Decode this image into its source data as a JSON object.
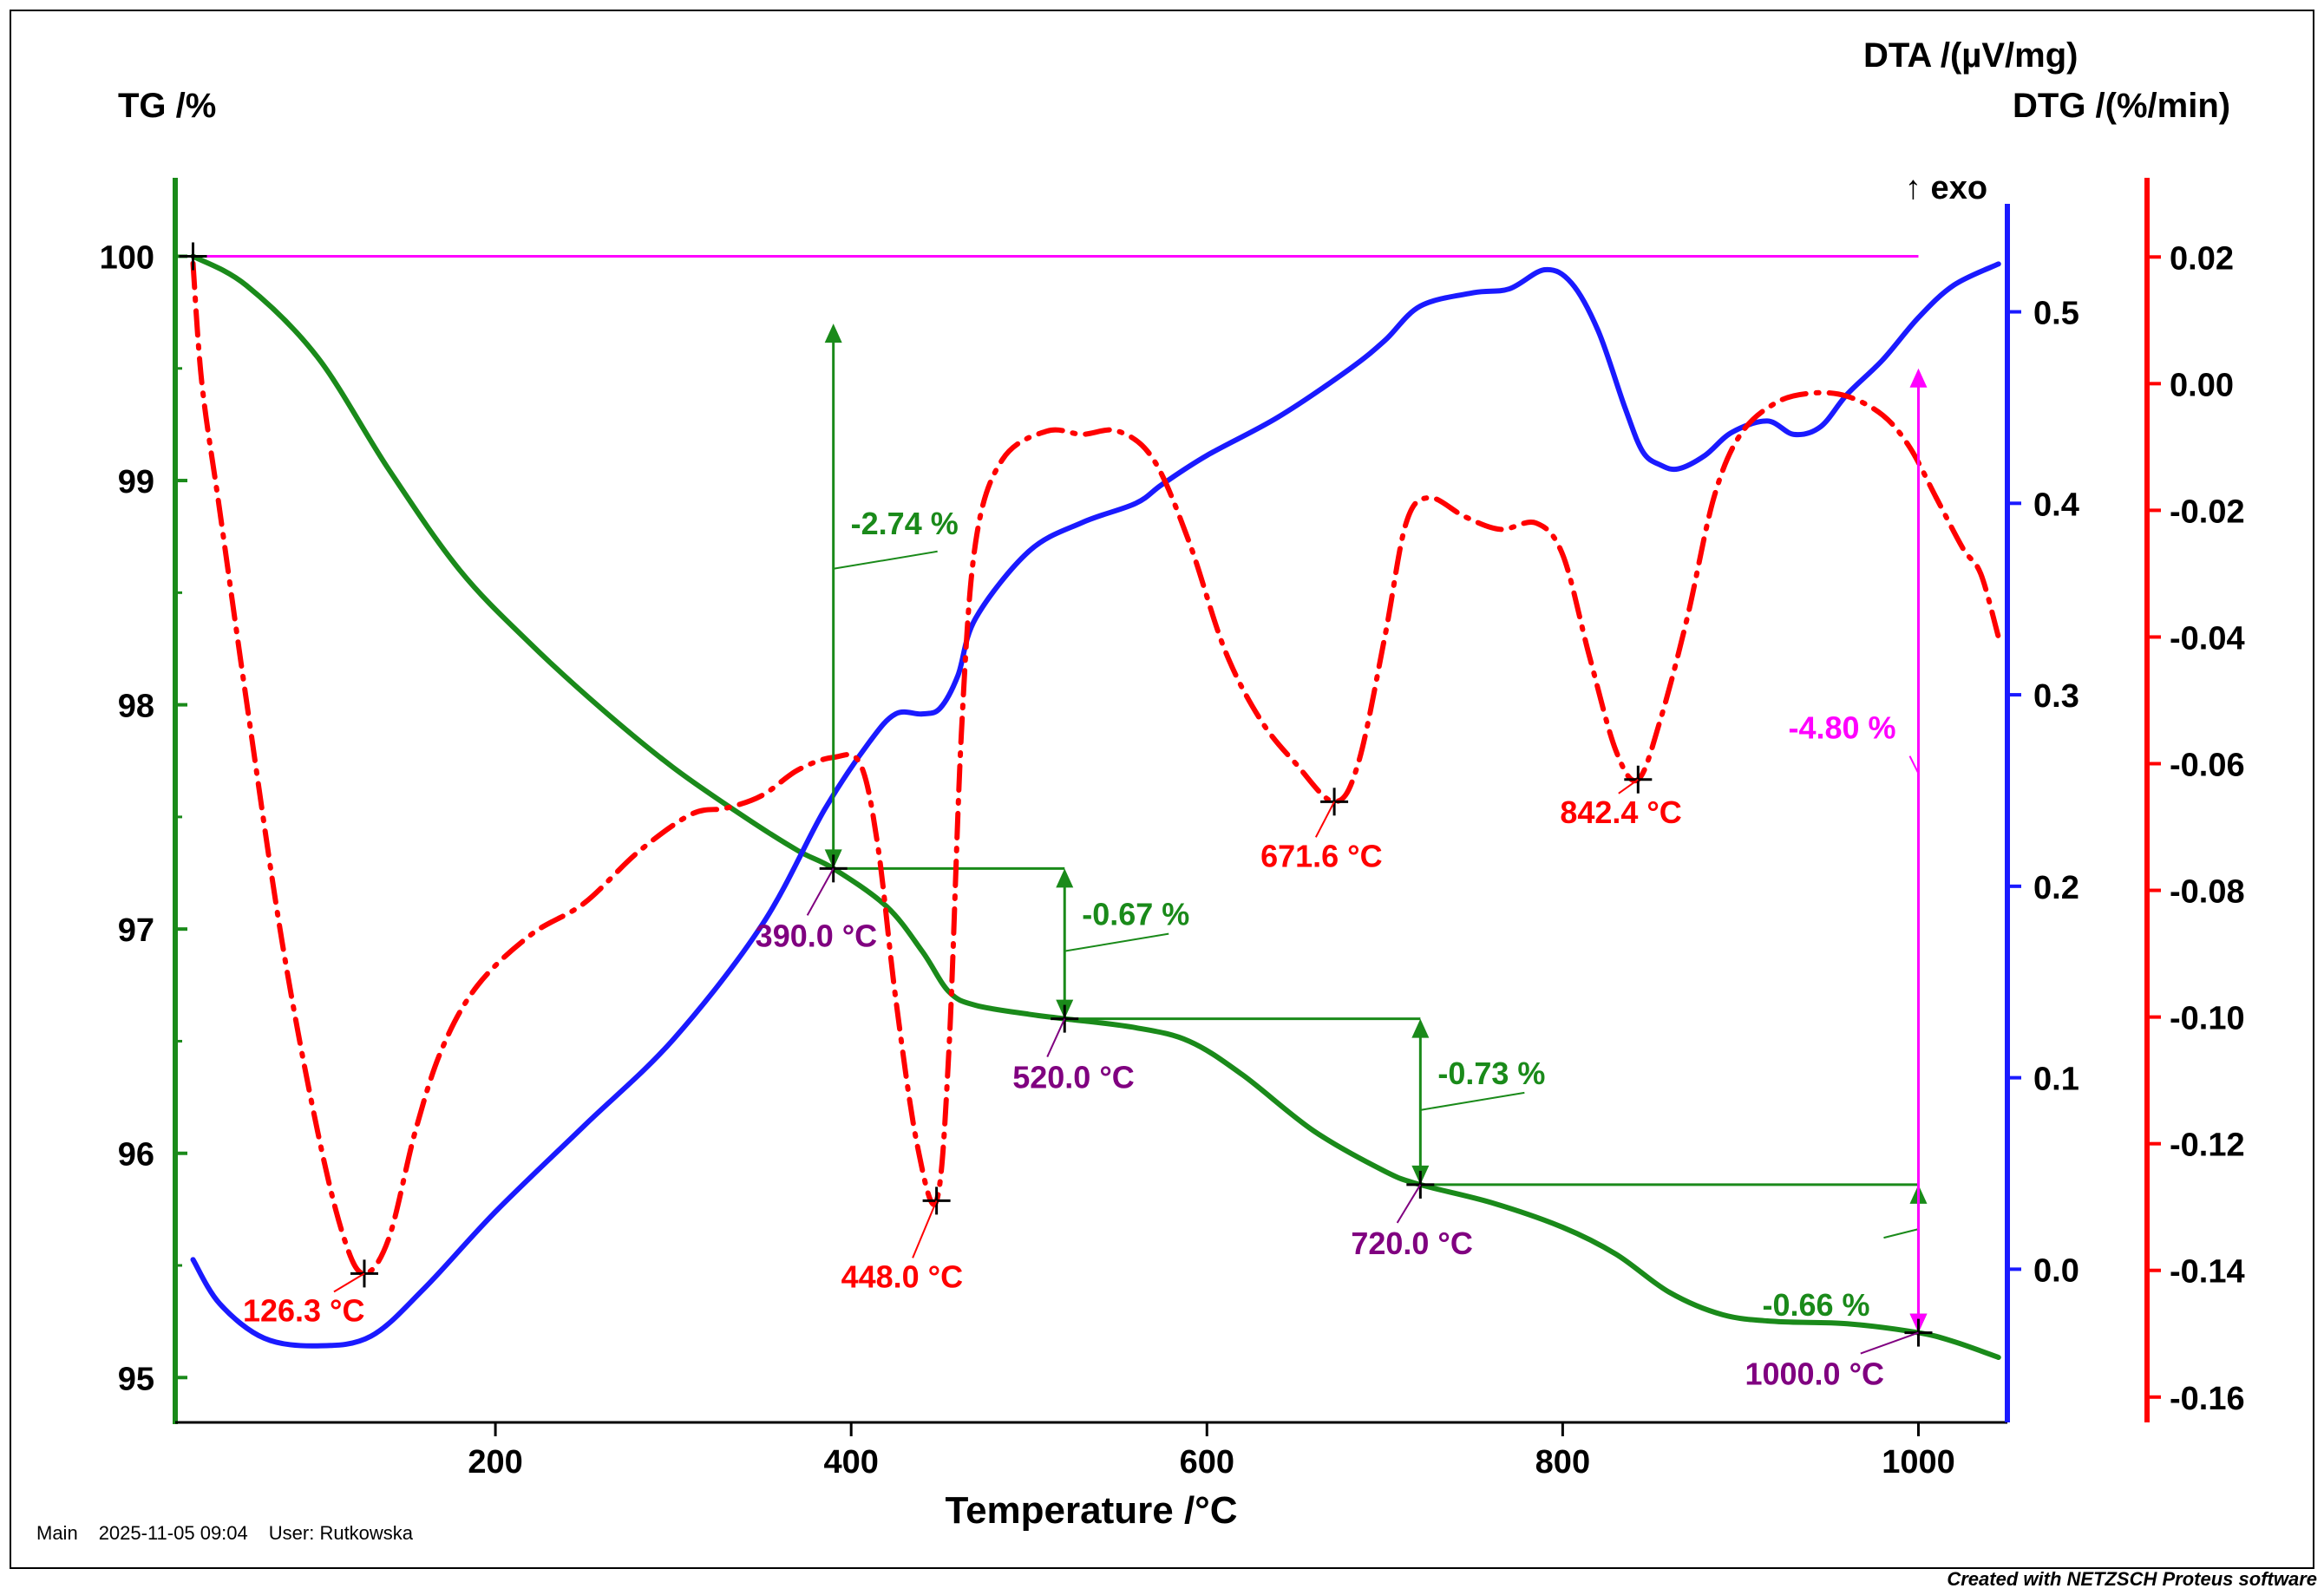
{
  "footer": {
    "label": "Main",
    "timestamp": "2025-11-05 09:04",
    "user": "User: Rutkowska"
  },
  "credit": "Created with NETZSCH Proteus software",
  "chart_data": {
    "type": "line",
    "xlabel": "Temperature /°C",
    "xlim": [
      20,
      1050
    ],
    "xticks": [
      200,
      400,
      600,
      800,
      1000
    ],
    "axes": {
      "tg": {
        "title": "TG /%",
        "ylim": [
          94.8,
          100.35
        ],
        "ticks": [
          95,
          96,
          97,
          98,
          99,
          100
        ],
        "color": "#000000",
        "axis_color": "#1a8a1a"
      },
      "dta": {
        "title": "DTA /(µV/mg)",
        "exo": "↑ exo",
        "ylim": [
          -0.08,
          0.57
        ],
        "ticks": [
          0.0,
          0.1,
          0.2,
          0.3,
          0.4,
          0.5
        ],
        "color": "#000000",
        "axis_color": "#1a1aff"
      },
      "dtg": {
        "title": "DTG /(%/min)",
        "ylim": [
          -0.164,
          0.0325
        ],
        "ticks": [
          0.02,
          0.0,
          -0.02,
          -0.04,
          -0.06,
          -0.08,
          -0.1,
          -0.12,
          -0.14,
          -0.16
        ],
        "tick_labels": [
          "0.02",
          "0.00",
          "-0.02",
          "-0.04",
          "-0.06",
          "-0.08",
          "-0.10",
          "-0.12",
          "-0.14",
          "-0.16"
        ],
        "color": "#000000",
        "axis_color": "#ff0000"
      }
    },
    "series": [
      {
        "name": "TG",
        "axis": "tg",
        "color": "#1a8a1a",
        "style": "solid",
        "points": [
          [
            30,
            100.0
          ],
          [
            60,
            99.87
          ],
          [
            100,
            99.55
          ],
          [
            140,
            99.05
          ],
          [
            180,
            98.6
          ],
          [
            220,
            98.27
          ],
          [
            260,
            97.98
          ],
          [
            300,
            97.72
          ],
          [
            340,
            97.5
          ],
          [
            370,
            97.35
          ],
          [
            390,
            97.27
          ],
          [
            420,
            97.1
          ],
          [
            440,
            96.9
          ],
          [
            455,
            96.72
          ],
          [
            470,
            96.66
          ],
          [
            500,
            96.62
          ],
          [
            520,
            96.6
          ],
          [
            560,
            96.56
          ],
          [
            590,
            96.5
          ],
          [
            620,
            96.35
          ],
          [
            660,
            96.1
          ],
          [
            700,
            95.92
          ],
          [
            720,
            95.86
          ],
          [
            760,
            95.78
          ],
          [
            800,
            95.67
          ],
          [
            830,
            95.55
          ],
          [
            860,
            95.38
          ],
          [
            890,
            95.28
          ],
          [
            920,
            95.25
          ],
          [
            960,
            95.24
          ],
          [
            1000,
            95.2
          ],
          [
            1020,
            95.16
          ],
          [
            1045,
            95.09
          ]
        ]
      },
      {
        "name": "DTA",
        "axis": "dta",
        "color": "#1a1aff",
        "style": "solid",
        "points": [
          [
            30,
            0.005
          ],
          [
            45,
            -0.018
          ],
          [
            70,
            -0.036
          ],
          [
            100,
            -0.04
          ],
          [
            130,
            -0.035
          ],
          [
            160,
            -0.01
          ],
          [
            200,
            0.03
          ],
          [
            250,
            0.075
          ],
          [
            300,
            0.12
          ],
          [
            350,
            0.18
          ],
          [
            385,
            0.24
          ],
          [
            410,
            0.275
          ],
          [
            425,
            0.29
          ],
          [
            440,
            0.29
          ],
          [
            450,
            0.293
          ],
          [
            460,
            0.31
          ],
          [
            470,
            0.34
          ],
          [
            500,
            0.375
          ],
          [
            530,
            0.39
          ],
          [
            560,
            0.4
          ],
          [
            575,
            0.41
          ],
          [
            600,
            0.425
          ],
          [
            640,
            0.445
          ],
          [
            680,
            0.47
          ],
          [
            700,
            0.485
          ],
          [
            720,
            0.503
          ],
          [
            750,
            0.51
          ],
          [
            770,
            0.512
          ],
          [
            790,
            0.522
          ],
          [
            805,
            0.515
          ],
          [
            820,
            0.49
          ],
          [
            835,
            0.45
          ],
          [
            845,
            0.427
          ],
          [
            855,
            0.42
          ],
          [
            865,
            0.418
          ],
          [
            880,
            0.425
          ],
          [
            895,
            0.437
          ],
          [
            915,
            0.443
          ],
          [
            930,
            0.436
          ],
          [
            945,
            0.44
          ],
          [
            960,
            0.457
          ],
          [
            980,
            0.475
          ],
          [
            1000,
            0.497
          ],
          [
            1020,
            0.514
          ],
          [
            1045,
            0.525
          ]
        ]
      },
      {
        "name": "DTG",
        "axis": "dtg",
        "color": "#ff0000",
        "style": "dashdot",
        "points": [
          [
            30,
            0.019
          ],
          [
            35,
            0.0
          ],
          [
            45,
            -0.02
          ],
          [
            60,
            -0.05
          ],
          [
            80,
            -0.088
          ],
          [
            100,
            -0.118
          ],
          [
            115,
            -0.135
          ],
          [
            126.3,
            -0.1405
          ],
          [
            140,
            -0.135
          ],
          [
            155,
            -0.118
          ],
          [
            170,
            -0.105
          ],
          [
            190,
            -0.095
          ],
          [
            220,
            -0.087
          ],
          [
            250,
            -0.082
          ],
          [
            280,
            -0.074
          ],
          [
            310,
            -0.068
          ],
          [
            330,
            -0.067
          ],
          [
            350,
            -0.065
          ],
          [
            370,
            -0.061
          ],
          [
            390,
            -0.059
          ],
          [
            405,
            -0.06
          ],
          [
            415,
            -0.073
          ],
          [
            425,
            -0.097
          ],
          [
            437,
            -0.12
          ],
          [
            448,
            -0.129
          ],
          [
            455,
            -0.105
          ],
          [
            462,
            -0.055
          ],
          [
            470,
            -0.025
          ],
          [
            485,
            -0.012
          ],
          [
            510,
            -0.0075
          ],
          [
            530,
            -0.008
          ],
          [
            550,
            -0.0075
          ],
          [
            570,
            -0.012
          ],
          [
            590,
            -0.025
          ],
          [
            610,
            -0.042
          ],
          [
            630,
            -0.053
          ],
          [
            650,
            -0.06
          ],
          [
            671.6,
            -0.066
          ],
          [
            685,
            -0.06
          ],
          [
            700,
            -0.04
          ],
          [
            712,
            -0.022
          ],
          [
            725,
            -0.018
          ],
          [
            745,
            -0.021
          ],
          [
            765,
            -0.023
          ],
          [
            785,
            -0.022
          ],
          [
            800,
            -0.027
          ],
          [
            815,
            -0.043
          ],
          [
            830,
            -0.058
          ],
          [
            842.4,
            -0.0625
          ],
          [
            855,
            -0.053
          ],
          [
            870,
            -0.037
          ],
          [
            885,
            -0.018
          ],
          [
            900,
            -0.008
          ],
          [
            920,
            -0.003
          ],
          [
            940,
            -0.0015
          ],
          [
            960,
            -0.002
          ],
          [
            980,
            -0.005
          ],
          [
            995,
            -0.01
          ],
          [
            1010,
            -0.018
          ],
          [
            1025,
            -0.026
          ],
          [
            1035,
            -0.03
          ],
          [
            1045,
            -0.04
          ]
        ]
      }
    ],
    "peak_markers": [
      {
        "series": "DTG",
        "x": 126.3,
        "label": "126.3 °C",
        "color": "#ff0000"
      },
      {
        "series": "DTG",
        "x": 448.0,
        "label": "448.0 °C",
        "color": "#ff0000"
      },
      {
        "series": "DTG",
        "x": 671.6,
        "label": "671.6 °C",
        "color": "#ff0000"
      },
      {
        "series": "DTG",
        "x": 842.4,
        "label": "842.4 °C",
        "color": "#ff0000"
      }
    ],
    "tg_markers": [
      {
        "x": 390.0,
        "y": 97.27,
        "label": "390.0 °C",
        "color": "#800080"
      },
      {
        "x": 520.0,
        "y": 96.6,
        "label": "520.0 °C",
        "color": "#800080"
      },
      {
        "x": 720.0,
        "y": 95.86,
        "label": "720.0 °C",
        "color": "#800080"
      },
      {
        "x": 1000.0,
        "y": 95.2,
        "label": "1000.0 °C",
        "color": "#800080"
      }
    ],
    "mass_changes": [
      {
        "label": "-2.74 %",
        "x": 390,
        "from": 100.0,
        "to": 97.27,
        "color": "#1a8a1a"
      },
      {
        "label": "-0.67 %",
        "x": 520,
        "from": 97.27,
        "to": 96.6,
        "color": "#1a8a1a"
      },
      {
        "label": "-0.73 %",
        "x": 720,
        "from": 96.6,
        "to": 95.86,
        "color": "#1a8a1a"
      },
      {
        "label": "-0.66 %",
        "x": 1000,
        "from": 95.86,
        "to": 95.2,
        "color": "#1a8a1a"
      },
      {
        "label": "-4.80 %",
        "x": 1000,
        "from": 100.0,
        "to": 95.2,
        "color": "#ff00ff"
      }
    ]
  }
}
